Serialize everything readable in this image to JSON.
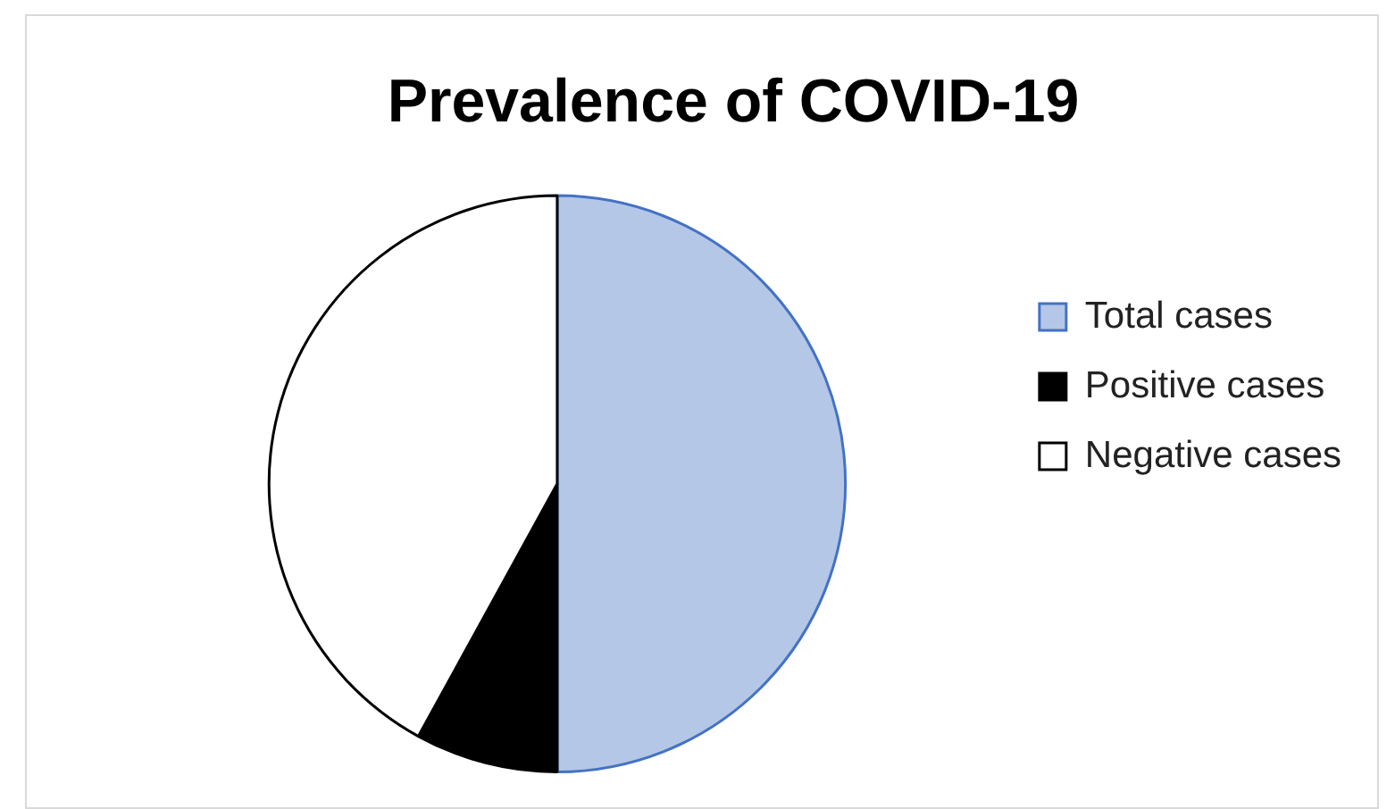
{
  "chart_data": {
    "type": "pie",
    "title": "Prevalence of COVID-19",
    "categories": [
      "Total cases",
      "Positive cases",
      "Negative cases"
    ],
    "values": [
      50,
      8,
      42
    ],
    "colors": [
      "#b4c7e7",
      "#000000",
      "#ffffff"
    ],
    "legend": "right"
  }
}
